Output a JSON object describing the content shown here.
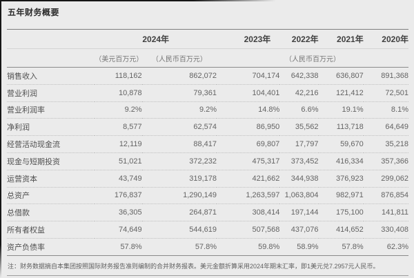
{
  "page": {
    "title": "五年财务概要",
    "footnote": "注：财务数据摘自本集团按照国际财务报告准则编制的合并财务报表。美元金额折算采用2024年期末汇率，即1美元兑7.2957元人民币。"
  },
  "colors": {
    "page_background": "#ebebeb",
    "rule_dark": "#8a8a8a",
    "rule_light": "#d4d4d4",
    "row_divider_dotted": "#bfbfbf"
  },
  "table": {
    "year_groups": [
      {
        "label": "2024年",
        "colspan": 2
      },
      {
        "label": "2023年",
        "colspan": 1
      },
      {
        "label": "2022年",
        "colspan": 1
      },
      {
        "label": "2021年",
        "colspan": 1
      },
      {
        "label": "2020年",
        "colspan": 1
      }
    ],
    "units": [
      "（美元百万元）",
      "（人民币百万元）",
      "（人民币百万元）"
    ],
    "rows": [
      {
        "label": "销售收入",
        "values": [
          "118,162",
          "862,072",
          "704,174",
          "642,338",
          "636,807",
          "891,368"
        ]
      },
      {
        "label": "营业利润",
        "values": [
          "10,878",
          "79,361",
          "104,401",
          "42,216",
          "121,412",
          "72,501"
        ]
      },
      {
        "label": "营业利润率",
        "values": [
          "9.2%",
          "9.2%",
          "14.8%",
          "6.6%",
          "19.1%",
          "8.1%"
        ]
      },
      {
        "label": "净利润",
        "values": [
          "8,577",
          "62,574",
          "86,950",
          "35,562",
          "113,718",
          "64,649"
        ]
      },
      {
        "label": "经营活动现金流",
        "values": [
          "12,119",
          "88,417",
          "69,807",
          "17,797",
          "59,670",
          "35,218"
        ]
      },
      {
        "label": "现金与短期投资",
        "values": [
          "51,021",
          "372,232",
          "475,317",
          "373,452",
          "416,334",
          "357,366"
        ]
      },
      {
        "label": "运营资本",
        "values": [
          "43,749",
          "319,178",
          "421,662",
          "344,938",
          "376,923",
          "299,062"
        ]
      },
      {
        "label": "总资产",
        "values": [
          "176,837",
          "1,290,149",
          "1,263,597",
          "1,063,804",
          "982,971",
          "876,854"
        ]
      },
      {
        "label": "总借款",
        "values": [
          "36,305",
          "264,871",
          "308,414",
          "197,144",
          "175,100",
          "141,811"
        ]
      },
      {
        "label": "所有者权益",
        "values": [
          "74,649",
          "544,619",
          "507,568",
          "437,076",
          "414,652",
          "330,408"
        ]
      },
      {
        "label": "资产负债率",
        "values": [
          "57.8%",
          "57.8%",
          "59.8%",
          "58.9%",
          "57.8%",
          "62.3%"
        ]
      }
    ]
  }
}
